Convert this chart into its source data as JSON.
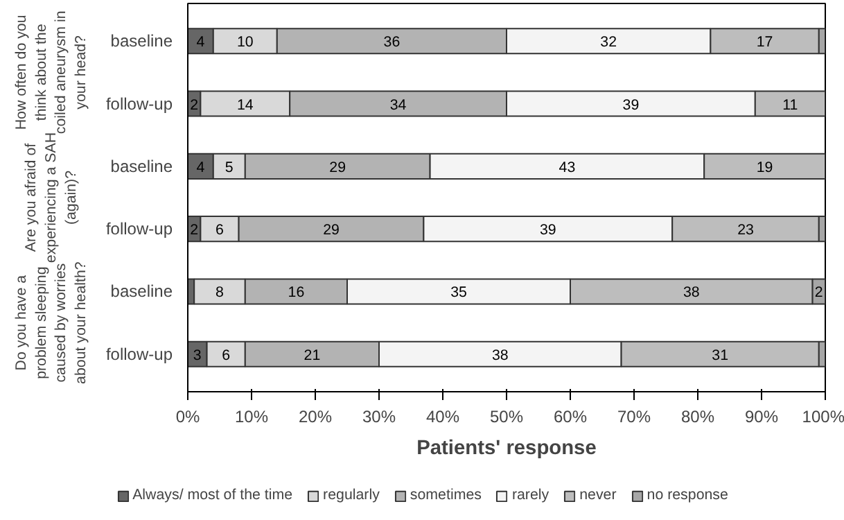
{
  "chart_data": {
    "type": "bar",
    "orientation": "horizontal",
    "stacked": true,
    "xlabel": "Patients' response",
    "categories": [
      "baseline",
      "follow-up",
      "baseline",
      "follow-up",
      "baseline",
      "follow-up"
    ],
    "annotations": [
      "How often do you think about the coiled aneurysm in your head?",
      "Are you afraid of experiencing a SAH (again)?",
      "Do you have a problem sleeping caused by worries about your health?"
    ],
    "xlim": [
      0,
      100
    ],
    "xticks": [
      {
        "value": 0,
        "label": "0%"
      },
      {
        "value": 10,
        "label": "10%"
      },
      {
        "value": 20,
        "label": "20%"
      },
      {
        "value": 30,
        "label": "30%"
      },
      {
        "value": 40,
        "label": "40%"
      },
      {
        "value": 50,
        "label": "50%"
      },
      {
        "value": 60,
        "label": "60%"
      },
      {
        "value": 70,
        "label": "70%"
      },
      {
        "value": 80,
        "label": "80%"
      },
      {
        "value": 90,
        "label": "90%"
      },
      {
        "value": 100,
        "label": "100%"
      }
    ],
    "series": [
      {
        "name": "Always/ most of the time",
        "color": "#666666",
        "values": [
          4,
          2,
          4,
          2,
          1,
          3
        ],
        "value_labels": [
          "4",
          "2",
          "4",
          "2",
          null,
          "3"
        ]
      },
      {
        "name": "regularly",
        "color": "#d9d9d9",
        "values": [
          10,
          14,
          5,
          6,
          8,
          6
        ],
        "value_labels": [
          "10",
          "14",
          "5",
          "6",
          "8",
          "6"
        ]
      },
      {
        "name": "sometimes",
        "color": "#b3b3b3",
        "values": [
          36,
          34,
          29,
          29,
          16,
          21
        ],
        "value_labels": [
          "36",
          "34",
          "29",
          "29",
          "16",
          "21"
        ]
      },
      {
        "name": "rarely",
        "color": "#f4f4f4",
        "values": [
          32,
          39,
          43,
          39,
          35,
          38
        ],
        "value_labels": [
          "32",
          "39",
          "43",
          "39",
          "35",
          "38"
        ]
      },
      {
        "name": "never",
        "color": "#bdbdbd",
        "values": [
          17,
          11,
          19,
          23,
          38,
          31
        ],
        "value_labels": [
          "17",
          "11",
          "19",
          "23",
          "38",
          "31"
        ]
      },
      {
        "name": "no response",
        "color": "#a6a6a6",
        "values": [
          1,
          null,
          null,
          1,
          2,
          1
        ],
        "value_labels": [
          null,
          null,
          null,
          null,
          "2",
          null
        ]
      }
    ],
    "legend": "bottom",
    "grid": false
  }
}
